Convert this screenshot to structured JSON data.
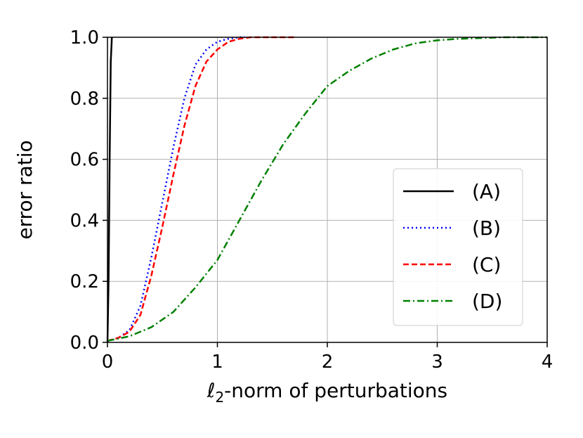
{
  "chart_data": {
    "type": "line",
    "xlabel_math": "ℓ",
    "xlabel_sub": "2",
    "xlabel_rest": "-norm of perturbations",
    "ylabel": "error ratio",
    "xlim": [
      0,
      4
    ],
    "ylim": [
      0,
      1
    ],
    "x_ticks": [
      0,
      1,
      2,
      3,
      4
    ],
    "x_tick_labels": [
      "0",
      "1",
      "2",
      "3",
      "4"
    ],
    "y_ticks": [
      0,
      0.2,
      0.4,
      0.6,
      0.8,
      1.0
    ],
    "y_tick_labels": [
      "0.0",
      "0.2",
      "0.4",
      "0.6",
      "0.8",
      "1.0"
    ],
    "grid": true,
    "legend_position": "right",
    "series": [
      {
        "name": "(A)",
        "color": "#000000",
        "style": "solid",
        "points": [
          [
            0,
            0
          ],
          [
            0.01,
            0.2
          ],
          [
            0.02,
            0.6
          ],
          [
            0.03,
            0.92
          ],
          [
            0.04,
            1.0
          ]
        ]
      },
      {
        "name": "(B)",
        "color": "#0000ff",
        "style": "dotted",
        "points": [
          [
            0,
            0.005
          ],
          [
            0.1,
            0.015
          ],
          [
            0.2,
            0.04
          ],
          [
            0.3,
            0.12
          ],
          [
            0.4,
            0.28
          ],
          [
            0.5,
            0.46
          ],
          [
            0.6,
            0.64
          ],
          [
            0.7,
            0.8
          ],
          [
            0.8,
            0.91
          ],
          [
            0.9,
            0.96
          ],
          [
            1.0,
            0.985
          ],
          [
            1.1,
            0.995
          ],
          [
            1.2,
            1.0
          ],
          [
            1.25,
            1.0
          ]
        ]
      },
      {
        "name": "(C)",
        "color": "#ff0000",
        "style": "dashed",
        "points": [
          [
            0,
            0.005
          ],
          [
            0.1,
            0.015
          ],
          [
            0.2,
            0.035
          ],
          [
            0.3,
            0.09
          ],
          [
            0.4,
            0.22
          ],
          [
            0.5,
            0.38
          ],
          [
            0.6,
            0.55
          ],
          [
            0.7,
            0.71
          ],
          [
            0.8,
            0.84
          ],
          [
            0.9,
            0.92
          ],
          [
            1.0,
            0.96
          ],
          [
            1.1,
            0.985
          ],
          [
            1.2,
            0.995
          ],
          [
            1.3,
            1.0
          ],
          [
            1.7,
            1.0
          ]
        ]
      },
      {
        "name": "(D)",
        "color": "#008000",
        "style": "dashdot",
        "points": [
          [
            0,
            0.005
          ],
          [
            0.2,
            0.02
          ],
          [
            0.4,
            0.05
          ],
          [
            0.6,
            0.1
          ],
          [
            0.8,
            0.18
          ],
          [
            1.0,
            0.27
          ],
          [
            1.2,
            0.4
          ],
          [
            1.4,
            0.53
          ],
          [
            1.6,
            0.65
          ],
          [
            1.8,
            0.75
          ],
          [
            2.0,
            0.84
          ],
          [
            2.2,
            0.89
          ],
          [
            2.4,
            0.93
          ],
          [
            2.6,
            0.96
          ],
          [
            2.8,
            0.98
          ],
          [
            3.0,
            0.99
          ],
          [
            3.2,
            0.995
          ],
          [
            3.6,
            1.0
          ],
          [
            4.0,
            1.0
          ]
        ]
      }
    ]
  }
}
